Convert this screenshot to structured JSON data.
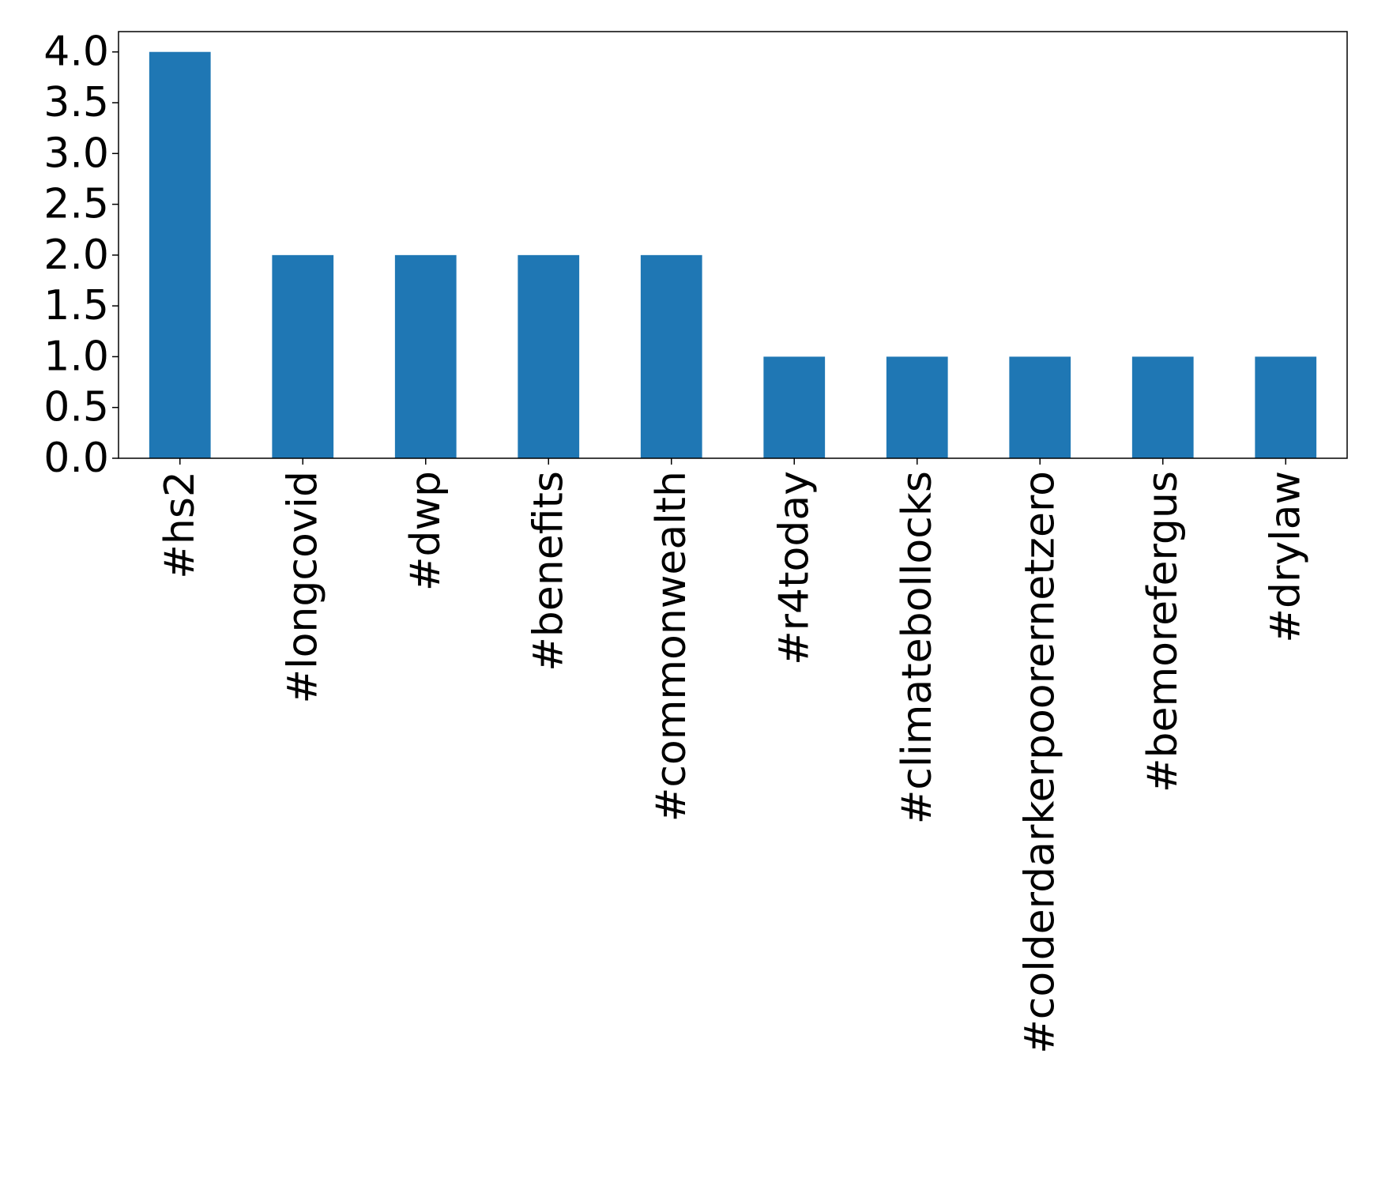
{
  "chart_data": {
    "type": "bar",
    "categories": [
      "#hs2",
      "#longcovid",
      "#dwp",
      "#benefits",
      "#commonwealth",
      "#r4today",
      "#climatebollocks",
      "#colderdarkerpoorernetzero",
      "#bemorefergus",
      "#drylaw"
    ],
    "values": [
      4,
      2,
      2,
      2,
      2,
      1,
      1,
      1,
      1,
      1
    ],
    "title": "",
    "xlabel": "",
    "ylabel": "",
    "ylim": [
      0,
      4.2
    ],
    "yticks": [
      "0.0",
      "0.5",
      "1.0",
      "1.5",
      "2.0",
      "2.5",
      "3.0",
      "3.5",
      "4.0"
    ],
    "bar_color": "#1f77b4",
    "grid": false,
    "legend": "none"
  }
}
